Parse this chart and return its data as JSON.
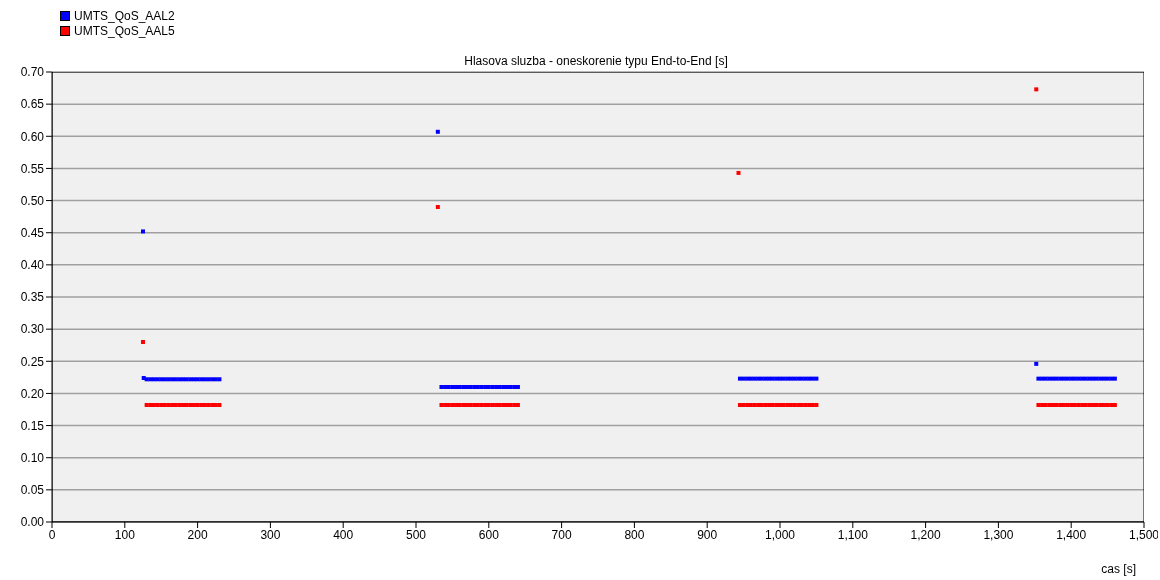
{
  "chart_data": {
    "type": "scatter",
    "title": "Hlasova sluzba - oneskorenie typu End-to-End [s]",
    "xlabel": "cas [s]",
    "legend": "top left",
    "grid": "y",
    "marker": "square",
    "xlim": [
      0,
      1500
    ],
    "xticks": [
      0,
      100,
      200,
      300,
      400,
      500,
      600,
      700,
      800,
      900,
      {
        "value": 1000,
        "label": "1,000"
      },
      {
        "value": 1100,
        "label": "1,100"
      },
      {
        "value": 1200,
        "label": "1,200"
      },
      {
        "value": 1300,
        "label": "1,300"
      },
      {
        "value": 1400,
        "label": "1,400"
      },
      {
        "value": 1500,
        "label": "1,500"
      }
    ],
    "ylim": [
      0,
      0.7
    ],
    "yticks": [
      {
        "value": 0,
        "label": "0.00"
      },
      {
        "value": 0.05,
        "label": "0.05"
      },
      {
        "value": 0.1,
        "label": "0.10"
      },
      {
        "value": 0.15,
        "label": "0.15"
      },
      {
        "value": 0.2,
        "label": "0.20"
      },
      {
        "value": 0.25,
        "label": "0.25"
      },
      {
        "value": 0.3,
        "label": "0.30"
      },
      {
        "value": 0.35,
        "label": "0.35"
      },
      {
        "value": 0.4,
        "label": "0.40"
      },
      {
        "value": 0.45,
        "label": "0.45"
      },
      {
        "value": 0.5,
        "label": "0.50"
      },
      {
        "value": 0.55,
        "label": "0.55"
      },
      {
        "value": 0.6,
        "label": "0.60"
      },
      {
        "value": 0.65,
        "label": "0.65"
      },
      {
        "value": 0.7,
        "label": "0.70"
      }
    ],
    "series": [
      {
        "name": "UMTS_QoS_AAL2",
        "color": "#0000ff",
        "x": [
          125,
          126,
          130,
          135,
          140,
          145,
          150,
          155,
          160,
          165,
          170,
          175,
          180,
          185,
          190,
          195,
          200,
          205,
          210,
          215,
          220,
          225,
          230,
          530,
          535,
          540,
          545,
          550,
          555,
          560,
          565,
          570,
          575,
          580,
          585,
          590,
          595,
          600,
          605,
          610,
          615,
          620,
          625,
          630,
          635,
          640,
          945,
          950,
          955,
          960,
          965,
          970,
          975,
          980,
          985,
          990,
          995,
          1000,
          1005,
          1010,
          1015,
          1020,
          1025,
          1030,
          1035,
          1040,
          1045,
          1050,
          1352,
          1355,
          1360,
          1365,
          1370,
          1375,
          1380,
          1385,
          1390,
          1395,
          1400,
          1405,
          1410,
          1415,
          1420,
          1425,
          1430,
          1435,
          1440,
          1445,
          1450,
          1455,
          1460
        ],
        "values": [
          0.452,
          0.224,
          0.222,
          0.222,
          0.222,
          0.222,
          0.222,
          0.222,
          0.222,
          0.222,
          0.222,
          0.222,
          0.222,
          0.222,
          0.222,
          0.222,
          0.222,
          0.222,
          0.222,
          0.222,
          0.222,
          0.222,
          0.222,
          0.607,
          0.21,
          0.21,
          0.21,
          0.21,
          0.21,
          0.21,
          0.21,
          0.21,
          0.21,
          0.21,
          0.21,
          0.21,
          0.21,
          0.21,
          0.21,
          0.21,
          0.21,
          0.21,
          0.21,
          0.21,
          0.21,
          0.21,
          0.223,
          0.223,
          0.223,
          0.223,
          0.223,
          0.223,
          0.223,
          0.223,
          0.223,
          0.223,
          0.223,
          0.223,
          0.223,
          0.223,
          0.223,
          0.223,
          0.223,
          0.223,
          0.223,
          0.223,
          0.223,
          0.223,
          0.246,
          0.223,
          0.223,
          0.223,
          0.223,
          0.223,
          0.223,
          0.223,
          0.223,
          0.223,
          0.223,
          0.223,
          0.223,
          0.223,
          0.223,
          0.223,
          0.223,
          0.223,
          0.223,
          0.223,
          0.223,
          0.223,
          0.223
        ]
      },
      {
        "name": "UMTS_QoS_AAL5",
        "color": "#ff0000",
        "x": [
          125,
          130,
          135,
          140,
          145,
          150,
          155,
          160,
          165,
          170,
          175,
          180,
          185,
          190,
          195,
          200,
          205,
          210,
          215,
          220,
          225,
          230,
          530,
          535,
          540,
          545,
          550,
          555,
          560,
          565,
          570,
          575,
          580,
          585,
          590,
          595,
          600,
          605,
          610,
          615,
          620,
          625,
          630,
          635,
          640,
          943,
          945,
          950,
          955,
          960,
          965,
          970,
          975,
          980,
          985,
          990,
          995,
          1000,
          1005,
          1010,
          1015,
          1020,
          1025,
          1030,
          1035,
          1040,
          1045,
          1050,
          1352,
          1355,
          1360,
          1365,
          1370,
          1375,
          1380,
          1385,
          1390,
          1395,
          1400,
          1405,
          1410,
          1415,
          1420,
          1425,
          1430,
          1435,
          1440,
          1445,
          1450,
          1455,
          1460
        ],
        "values": [
          0.28,
          0.182,
          0.182,
          0.182,
          0.182,
          0.182,
          0.182,
          0.182,
          0.182,
          0.182,
          0.182,
          0.182,
          0.182,
          0.182,
          0.182,
          0.182,
          0.182,
          0.182,
          0.182,
          0.182,
          0.182,
          0.182,
          0.49,
          0.182,
          0.182,
          0.182,
          0.182,
          0.182,
          0.182,
          0.182,
          0.182,
          0.182,
          0.182,
          0.182,
          0.182,
          0.182,
          0.182,
          0.182,
          0.182,
          0.182,
          0.182,
          0.182,
          0.182,
          0.182,
          0.182,
          0.543,
          0.182,
          0.182,
          0.182,
          0.182,
          0.182,
          0.182,
          0.182,
          0.182,
          0.182,
          0.182,
          0.182,
          0.182,
          0.182,
          0.182,
          0.182,
          0.182,
          0.182,
          0.182,
          0.182,
          0.182,
          0.182,
          0.182,
          0.673,
          0.182,
          0.182,
          0.182,
          0.182,
          0.182,
          0.182,
          0.182,
          0.182,
          0.182,
          0.182,
          0.182,
          0.182,
          0.182,
          0.182,
          0.182,
          0.182,
          0.182,
          0.182,
          0.182,
          0.182,
          0.182,
          0.182
        ]
      }
    ]
  }
}
